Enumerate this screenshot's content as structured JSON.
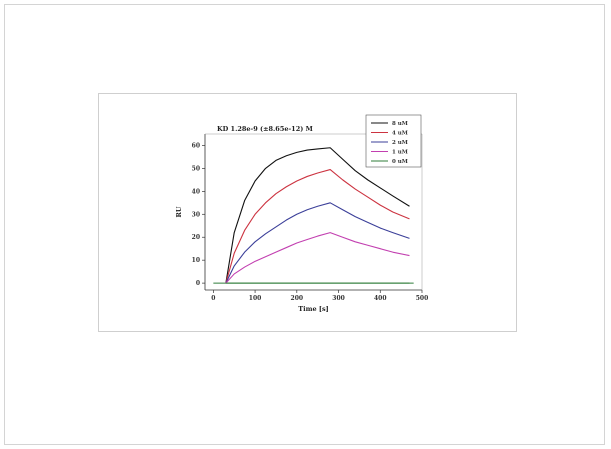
{
  "chart_data": {
    "type": "line",
    "title": "KD 1.28e-9 (±8.65e-12) M",
    "xlabel": "Time [s]",
    "ylabel": "RU",
    "xlim": [
      -20,
      500
    ],
    "ylim": [
      -3,
      65
    ],
    "xticks": [
      0,
      100,
      200,
      300,
      400,
      500
    ],
    "yticks": [
      0,
      10,
      20,
      30,
      40,
      50,
      60
    ],
    "grid": false,
    "legend_position": "top-right",
    "baseline": {
      "y": 0,
      "x": [
        0,
        480
      ],
      "color": "#2f7d3a"
    },
    "series": [
      {
        "name": "8 uM",
        "color": "#111111",
        "x": [
          30,
          50,
          75,
          100,
          125,
          150,
          175,
          200,
          225,
          250,
          280,
          310,
          340,
          370,
          400,
          430,
          470
        ],
        "y": [
          0,
          22,
          36,
          44.5,
          50,
          53.5,
          55.5,
          57,
          58,
          58.5,
          59,
          54,
          49,
          45,
          41.5,
          38,
          33.5
        ]
      },
      {
        "name": "4 uM",
        "color": "#cc3340",
        "x": [
          30,
          50,
          75,
          100,
          125,
          150,
          175,
          200,
          225,
          250,
          280,
          310,
          340,
          370,
          400,
          430,
          470
        ],
        "y": [
          0,
          13,
          23,
          30,
          35,
          39,
          42,
          44.5,
          46.5,
          48,
          49.5,
          45,
          41,
          37.5,
          34,
          31,
          28
        ]
      },
      {
        "name": "2 uM",
        "color": "#3b3f99",
        "x": [
          30,
          50,
          75,
          100,
          125,
          150,
          175,
          200,
          225,
          250,
          280,
          310,
          340,
          370,
          400,
          430,
          470
        ],
        "y": [
          0,
          7.5,
          13.5,
          18,
          21.5,
          24.5,
          27.5,
          30,
          32,
          33.5,
          35,
          32,
          29,
          26.5,
          24,
          22,
          19.5
        ]
      },
      {
        "name": "1 uM",
        "color": "#c23fb0",
        "x": [
          30,
          50,
          75,
          100,
          125,
          150,
          175,
          200,
          225,
          250,
          280,
          310,
          340,
          370,
          400,
          430,
          470
        ],
        "y": [
          0,
          4,
          7,
          9.5,
          11.5,
          13.5,
          15.5,
          17.5,
          19,
          20.5,
          22,
          20,
          18,
          16.5,
          15,
          13.5,
          12
        ]
      },
      {
        "name": "0 uM",
        "color": "#2f7d3a",
        "x": [
          30,
          470
        ],
        "y": [
          0,
          0
        ]
      }
    ]
  }
}
